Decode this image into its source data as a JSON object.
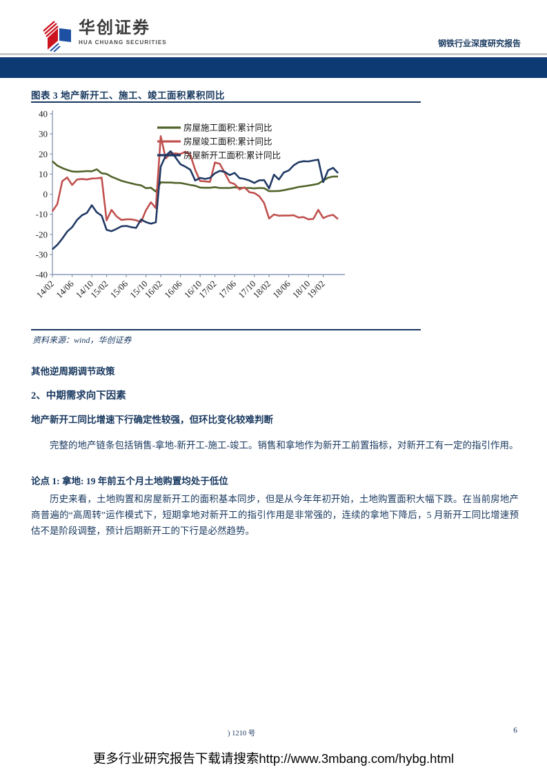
{
  "header": {
    "brand_cn": "华创证券",
    "brand_en": "HUA CHUANG SECURITIES",
    "report_type": "钢铁行业深度研究报告"
  },
  "figure": {
    "title": "图表 3  地产新开工、施工、竣工面积累积同比",
    "source": "资料来源：wind，华创证券"
  },
  "chart_data": {
    "type": "line",
    "title": "地产新开工、施工、竣工面积累积同比",
    "ylabel": "",
    "xlabel": "",
    "ylim": [
      -40,
      40
    ],
    "ytick_step": 10,
    "grid": false,
    "legend_position": "inside-top-center",
    "x_months": [
      "14/02",
      "14/03",
      "14/04",
      "14/05",
      "14/06",
      "14/07",
      "14/08",
      "14/09",
      "14/10",
      "14/11",
      "14/12",
      "15/02",
      "15/03",
      "15/04",
      "15/05",
      "15/06",
      "15/07",
      "15/08",
      "15/09",
      "15/10",
      "15/11",
      "15/12",
      "16/02",
      "16/03",
      "16/04",
      "16/05",
      "16/06",
      "16/07",
      "16/08",
      "16/09",
      "16/10",
      "16/11",
      "16/12",
      "17/02",
      "17/03",
      "17/04",
      "17/05",
      "17/06",
      "17/07",
      "17/08",
      "17/09",
      "17/10",
      "17/11",
      "17/12",
      "18/02",
      "18/03",
      "18/04",
      "18/05",
      "18/06",
      "18/07",
      "18/08",
      "18/09",
      "18/10",
      "18/11",
      "18/12",
      "19/02",
      "19/03",
      "19/04",
      "19/05"
    ],
    "x_tick_indices": [
      0,
      4,
      8,
      11,
      15,
      19,
      22,
      26,
      30,
      33,
      37,
      41,
      44,
      48,
      52,
      55
    ],
    "x_tick_labels": [
      "14/02",
      "14/06",
      "14/10",
      "15/02",
      "15/06",
      "15/10",
      "16/02",
      "16/06",
      "16/10",
      "17/02",
      "17/06",
      "17/10",
      "18/02",
      "18/06",
      "18/10",
      "19/02"
    ],
    "series": [
      {
        "name": "房屋施工面积:累计同比",
        "color": "#4F6228",
        "values": [
          16.4,
          14.2,
          13.0,
          12.1,
          11.3,
          11.2,
          11.3,
          11.5,
          11.4,
          12.4,
          10.4,
          10.1,
          8.7,
          7.7,
          6.7,
          6.0,
          5.4,
          4.8,
          4.4,
          3.0,
          3.2,
          1.3,
          5.9,
          5.8,
          5.8,
          5.6,
          5.6,
          5.1,
          4.6,
          4.2,
          3.3,
          3.2,
          3.2,
          3.5,
          3.1,
          3.1,
          3.1,
          3.4,
          3.2,
          3.1,
          3.1,
          2.9,
          3.1,
          3.0,
          1.5,
          1.5,
          1.6,
          2.0,
          2.5,
          3.0,
          3.6,
          3.9,
          4.3,
          4.7,
          5.2,
          6.8,
          8.2,
          8.8,
          8.8
        ]
      },
      {
        "name": "房屋竣工面积:累计同比",
        "color": "#C0504D",
        "values": [
          -8.5,
          -4.9,
          6.5,
          8.3,
          4.6,
          7.3,
          7.6,
          7.3,
          7.8,
          7.9,
          8.2,
          -13.0,
          -7.8,
          -11.0,
          -12.8,
          -12.5,
          -12.5,
          -13.0,
          -13.8,
          -8.0,
          -4.0,
          -6.9,
          28.9,
          17.8,
          20.3,
          20.3,
          20.0,
          21.2,
          19.6,
          12.1,
          6.6,
          6.4,
          6.1,
          15.8,
          15.1,
          10.6,
          5.9,
          5.0,
          2.4,
          3.4,
          1.0,
          0.6,
          -1.0,
          -4.4,
          -12.1,
          -10.1,
          -10.7,
          -10.6,
          -10.6,
          -10.5,
          -11.6,
          -11.4,
          -12.5,
          -12.3,
          -7.8,
          -11.9,
          -10.8,
          -10.3,
          -12.4
        ]
      },
      {
        "name": "房屋新开工面积:累计同比",
        "color": "#1F3864",
        "values": [
          -27.4,
          -25.2,
          -22.1,
          -18.6,
          -16.4,
          -12.8,
          -10.5,
          -9.3,
          -5.5,
          -9.0,
          -10.7,
          -17.7,
          -18.4,
          -17.3,
          -16.0,
          -15.8,
          -16.4,
          -16.8,
          -12.6,
          -13.9,
          -14.7,
          -14.0,
          13.7,
          19.2,
          21.4,
          18.3,
          14.9,
          13.7,
          12.2,
          6.8,
          8.1,
          7.6,
          8.1,
          10.4,
          11.6,
          11.1,
          9.5,
          10.6,
          8.0,
          7.6,
          6.8,
          5.6,
          6.9,
          7.0,
          2.9,
          9.7,
          7.3,
          10.8,
          11.8,
          14.4,
          15.9,
          16.4,
          16.3,
          16.8,
          17.2,
          6.0,
          11.9,
          13.1,
          10.5
        ]
      }
    ]
  },
  "body": {
    "heading_other": "其他逆周期调节政策",
    "heading_section": "2、中期需求向下因素",
    "heading_sub": "地产新开工同比增速下行确定性较强，但环比变化较难判断",
    "para1": "完整的地产链条包括销售-拿地-新开工-施工-竣工。销售和拿地作为新开工前置指标，对新开工有一定的指引作用。",
    "heading_point": "论点 1: 拿地: 19 年前五个月土地购置均处于低位",
    "para2": "历史来看，土地购置和房屋新开工的面积基本同步，但是从今年年初开始，土地购置面积大幅下跌。在当前房地产商普遍的“高周转”运作模式下，短期拿地对新开工的指引作用是非常强的，连续的拿地下降后，5 月新开工同比增速预估不是阶段调整，预计后期新开工的下行是必然趋势。"
  },
  "footer": {
    "filing_no": ") 1210 号",
    "page_number": "6",
    "promo": "更多行业研究报告下载请搜索http://www.3mbang.com/hybg.html"
  },
  "colors": {
    "navy_bar": "#0E3A74",
    "heading_navy": "#17375E",
    "rule_navy": "#17375E",
    "logo_red": "#CC1420",
    "logo_blue": "#1D50A2",
    "axis_gray": "#8A99B5"
  }
}
